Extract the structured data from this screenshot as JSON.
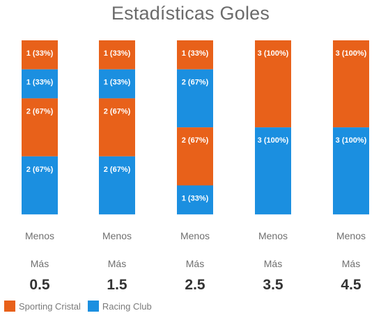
{
  "chart_data": {
    "type": "bar",
    "stacked": true,
    "title": "Estadísticas Goles",
    "categories": [
      "0.5",
      "1.5",
      "2.5",
      "3.5",
      "4.5"
    ],
    "category_lines": [
      [
        "Menos",
        "Más",
        "0.5"
      ],
      [
        "Menos",
        "Más",
        "1.5"
      ],
      [
        "Menos",
        "Más",
        "2.5"
      ],
      [
        "Menos",
        "Más",
        "3.5"
      ],
      [
        "Menos",
        "Más",
        "4.5"
      ]
    ],
    "legend": {
      "position": "bottom-left"
    },
    "colors": {
      "Sporting Cristal": "#e8611a",
      "Racing Club": "#1b8fe0"
    },
    "series": [
      {
        "name": "Sporting Cristal",
        "stat": "Más",
        "values": [
          1,
          1,
          1,
          0,
          0
        ],
        "labels": [
          "1 (33%)",
          "1 (33%)",
          "1 (33%)",
          "",
          ""
        ]
      },
      {
        "name": "Racing Club",
        "stat": "Más",
        "values": [
          1,
          1,
          2,
          0,
          0
        ],
        "labels": [
          "1 (33%)",
          "1 (33%)",
          "2 (67%)",
          "",
          ""
        ]
      },
      {
        "name": "Sporting Cristal",
        "stat": "Menos",
        "values": [
          2,
          2,
          2,
          3,
          3
        ],
        "labels": [
          "2 (67%)",
          "2 (67%)",
          "2 (67%)",
          "3 (100%)",
          "3 (100%)"
        ]
      },
      {
        "name": "Racing Club",
        "stat": "Menos",
        "values": [
          2,
          2,
          1,
          3,
          3
        ],
        "labels": [
          "2 (67%)",
          "2 (67%)",
          "1 (33%)",
          "3 (100%)",
          "3 (100%)"
        ]
      }
    ]
  }
}
